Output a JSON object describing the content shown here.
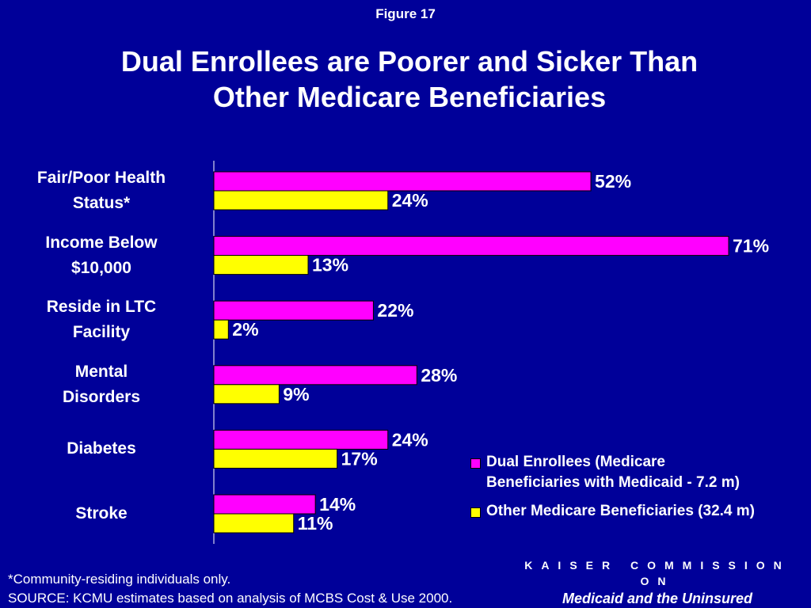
{
  "figure_label": "Figure 17",
  "title_lines": [
    "Dual Enrollees are Poorer and Sicker Than",
    "Other Medicare Beneficiaries"
  ],
  "colors": {
    "background": "#000099",
    "series_dual": "#FF00FF",
    "series_other": "#FFFF00"
  },
  "chart_data": {
    "type": "bar",
    "orientation": "horizontal",
    "categories": [
      [
        "Fair/Poor Health",
        "Status*"
      ],
      [
        "Income Below",
        "$10,000"
      ],
      [
        "Reside in LTC",
        "Facility"
      ],
      [
        "Mental",
        "Disorders"
      ],
      [
        "Diabetes"
      ],
      [
        "Stroke"
      ]
    ],
    "series": [
      {
        "name": "Dual Enrollees (Medicare Beneficiaries with Medicaid - 7.2 m)",
        "legend_lines": [
          "Dual Enrollees (Medicare",
          "Beneficiaries with Medicaid - 7.2 m)"
        ],
        "color": "#FF00FF",
        "values": [
          52,
          71,
          22,
          28,
          24,
          14
        ],
        "labels": [
          "52%",
          "71%",
          "22%",
          "28%",
          "24%",
          "14%"
        ]
      },
      {
        "name": "Other Medicare Beneficiaries (32.4 m)",
        "legend_lines": [
          "Other Medicare Beneficiaries (32.4 m)"
        ],
        "color": "#FFFF00",
        "values": [
          24,
          13,
          2,
          9,
          17,
          11
        ],
        "labels": [
          "24%",
          "13%",
          "2%",
          "9%",
          "17%",
          "11%"
        ]
      }
    ],
    "xlim": [
      0,
      80
    ],
    "grid": false,
    "legend_position": "bottom-right"
  },
  "footnotes": [
    "*Community-residing individuals only.",
    "SOURCE: KCMU estimates based on analysis of MCBS Cost & Use 2000."
  ],
  "branding": {
    "line1": "KAISER COMMISSION ON",
    "line2": "Medicaid and the Uninsured"
  }
}
